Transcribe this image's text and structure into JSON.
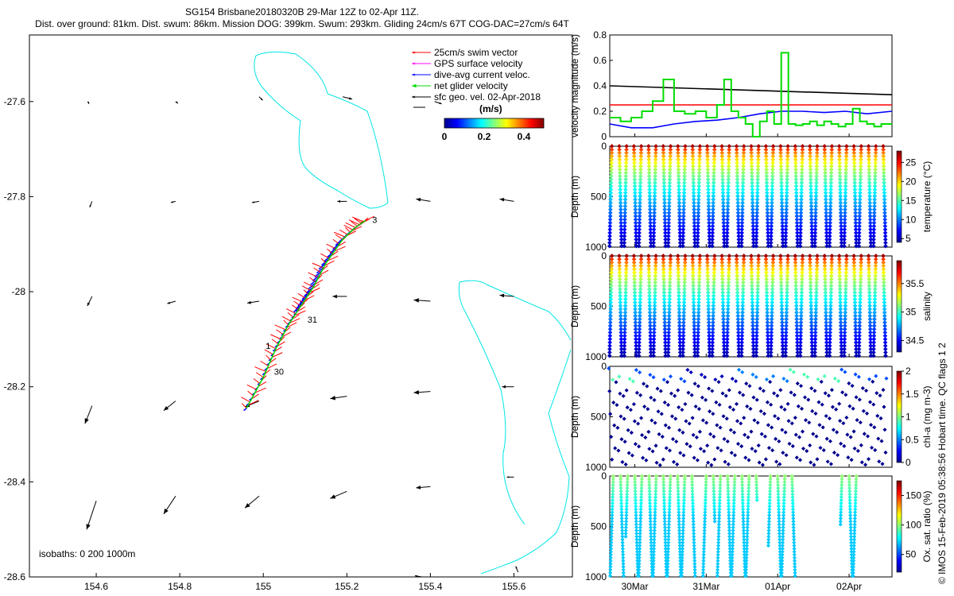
{
  "title_line1": "SG154 Brisbane20180320B 29-Mar 12Z to 02-Apr 11Z.",
  "title_line2": "Dist. over ground: 81km. Dist. swum: 86km. Mission DOG: 399km. Swum: 293km. Gliding 24cm/s 67T COG-DAC=27cm/s 64T",
  "side_stamp": "© IMOS 15-Feb-2019 05:38:56 Hobart time. QC flags 1  2",
  "colors": {
    "swim": "#ff0000",
    "gps": "#ff00ff",
    "dac": "#0000ff",
    "net": "#00dd00",
    "sfc": "#000000",
    "isobath": "#00e5e5"
  },
  "chart_data": [
    {
      "id": "map",
      "type": "scatter",
      "title": "Glider track and current vectors",
      "xlim": [
        154.44,
        155.74
      ],
      "ylim": [
        -28.6,
        -27.46
      ],
      "xticks": [
        154.6,
        154.8,
        155,
        155.2,
        155.4,
        155.6
      ],
      "xtick_labels": [
        "154.6",
        "154.8",
        "155",
        "155.2",
        "155.4",
        "155.6"
      ],
      "yticks": [
        -27.6,
        -27.8,
        -28,
        -28.2,
        -28.4,
        -28.6
      ],
      "ytick_labels": [
        "-27.6",
        "-27.8",
        "-28",
        "-28.2",
        "-28.4",
        "-28.6"
      ],
      "legend": [
        {
          "label": "25cm/s swim vector",
          "color": "#ff0000"
        },
        {
          "label": "GPS surface velocity",
          "color": "#ff00ff"
        },
        {
          "label": "dive-avg current veloc.",
          "color": "#0000ff"
        },
        {
          "label": "net glider velocity",
          "color": "#00dd00"
        },
        {
          "label": "sfc geo. vel. 02-Apr-2018",
          "color": "#000000"
        }
      ],
      "colorbar": {
        "label": "(m/s)",
        "ticks": [
          0,
          0.2,
          0.4
        ],
        "tick_labels": [
          "0",
          "0.2",
          "0.4"
        ],
        "range": [
          0,
          0.5
        ]
      },
      "isobath_label": "isobaths: 0   200  1000m",
      "track": [
        [
          154.96,
          -28.245
        ],
        [
          155.0,
          -28.18
        ],
        [
          155.03,
          -28.12
        ],
        [
          155.06,
          -28.07
        ],
        [
          155.09,
          -28.03
        ],
        [
          155.12,
          -27.99
        ],
        [
          155.15,
          -27.94
        ],
        [
          155.19,
          -27.89
        ],
        [
          155.22,
          -27.865
        ],
        [
          155.245,
          -27.85
        ]
      ],
      "day_labels": [
        {
          "text": "30",
          "lon": 155.02,
          "lat": -28.175
        },
        {
          "text": "31",
          "lon": 155.1,
          "lat": -28.065
        },
        {
          "text": "1",
          "lon": 155.0,
          "lat": -28.12
        },
        {
          "text": "3",
          "lon": 155.255,
          "lat": -27.855
        }
      ],
      "arrow_grid": [
        {
          "lon": 154.58,
          "lat": -27.6,
          "u": 0.005,
          "v": -0.01
        },
        {
          "lon": 154.79,
          "lat": -27.6,
          "u": 0.01,
          "v": -0.008
        },
        {
          "lon": 154.99,
          "lat": -27.59,
          "u": 0.015,
          "v": -0.015
        },
        {
          "lon": 155.19,
          "lat": -27.59,
          "u": 0.04,
          "v": -0.01
        },
        {
          "lon": 155.41,
          "lat": -27.6,
          "u": 0.03,
          "v": -0.01
        },
        {
          "lon": 154.59,
          "lat": -27.81,
          "u": -0.01,
          "v": -0.025
        },
        {
          "lon": 154.79,
          "lat": -27.81,
          "u": -0.02,
          "v": -0.005
        },
        {
          "lon": 154.99,
          "lat": -27.81,
          "u": -0.03,
          "v": -0.005
        },
        {
          "lon": 155.2,
          "lat": -27.81,
          "u": -0.04,
          "v": 0.0
        },
        {
          "lon": 155.4,
          "lat": -27.81,
          "u": -0.06,
          "v": 0.01
        },
        {
          "lon": 155.6,
          "lat": -27.81,
          "u": -0.06,
          "v": 0.01
        },
        {
          "lon": 154.59,
          "lat": -28.01,
          "u": -0.02,
          "v": -0.04
        },
        {
          "lon": 154.79,
          "lat": -28.02,
          "u": -0.035,
          "v": -0.01
        },
        {
          "lon": 154.99,
          "lat": -28.02,
          "u": -0.05,
          "v": -0.008
        },
        {
          "lon": 155.2,
          "lat": -28.01,
          "u": -0.06,
          "v": 0.0
        },
        {
          "lon": 155.4,
          "lat": -28.02,
          "u": -0.07,
          "v": 0.005
        },
        {
          "lon": 155.6,
          "lat": -28.01,
          "u": -0.06,
          "v": 0.005
        },
        {
          "lon": 154.59,
          "lat": -28.24,
          "u": -0.03,
          "v": -0.075
        },
        {
          "lon": 154.79,
          "lat": -28.23,
          "u": -0.05,
          "v": -0.04
        },
        {
          "lon": 154.99,
          "lat": -28.23,
          "u": -0.06,
          "v": -0.025
        },
        {
          "lon": 155.2,
          "lat": -28.22,
          "u": -0.07,
          "v": -0.01
        },
        {
          "lon": 155.4,
          "lat": -28.21,
          "u": -0.07,
          "v": -0.005
        },
        {
          "lon": 155.6,
          "lat": -28.2,
          "u": -0.05,
          "v": 0.0
        },
        {
          "lon": 154.6,
          "lat": -28.44,
          "u": -0.04,
          "v": -0.12
        },
        {
          "lon": 154.79,
          "lat": -28.43,
          "u": -0.05,
          "v": -0.075
        },
        {
          "lon": 154.99,
          "lat": -28.43,
          "u": -0.06,
          "v": -0.05
        },
        {
          "lon": 155.2,
          "lat": -28.42,
          "u": -0.07,
          "v": -0.03
        },
        {
          "lon": 155.4,
          "lat": -28.41,
          "u": -0.06,
          "v": -0.005
        },
        {
          "lon": 155.6,
          "lat": -28.39,
          "u": -0.03,
          "v": 0.0
        },
        {
          "lon": 155.38,
          "lat": -28.6,
          "u": -0.03,
          "v": 0.005
        },
        {
          "lon": 155.61,
          "lat": -28.59,
          "u": -0.01,
          "v": 0.025
        }
      ]
    },
    {
      "id": "velocity",
      "type": "line",
      "ylabel": "velocity magnitude (m/s)",
      "ylim": [
        0,
        0.8
      ],
      "yticks": [
        0,
        0.2,
        0.4,
        0.6,
        0.8
      ],
      "ytick_labels": [
        "0",
        "0.2",
        "0.4",
        "0.6",
        "0.8"
      ],
      "x_days": [
        0,
        3.95
      ],
      "series": [
        {
          "name": "sfc geo. vel.",
          "color": "#000000",
          "x": [
            0,
            3.95
          ],
          "values": [
            0.4,
            0.33
          ]
        },
        {
          "name": "25cm/s swim",
          "color": "#ff0000",
          "x": [
            0,
            3.95
          ],
          "values": [
            0.25,
            0.25
          ]
        },
        {
          "name": "dive-avg current",
          "color": "#0000ff",
          "x": [
            0,
            0.3,
            0.6,
            0.9,
            1.2,
            1.5,
            1.8,
            2.1,
            2.4,
            2.7,
            3.0,
            3.3,
            3.6,
            3.95
          ],
          "values": [
            0.1,
            0.07,
            0.07,
            0.1,
            0.12,
            0.13,
            0.15,
            0.18,
            0.2,
            0.2,
            0.19,
            0.2,
            0.18,
            0.2
          ]
        },
        {
          "name": "net glider velocity",
          "color": "#00dd00",
          "x": [
            0,
            0.15,
            0.3,
            0.45,
            0.6,
            0.75,
            0.9,
            1.05,
            1.2,
            1.35,
            1.5,
            1.6,
            1.7,
            1.8,
            1.9,
            2.0,
            2.1,
            2.2,
            2.3,
            2.4,
            2.5,
            2.6,
            2.7,
            2.8,
            2.9,
            3.0,
            3.1,
            3.2,
            3.3,
            3.4,
            3.5,
            3.6,
            3.7,
            3.8,
            3.95
          ],
          "values": [
            0.15,
            0.12,
            0.15,
            0.2,
            0.28,
            0.45,
            0.2,
            0.18,
            0.2,
            0.15,
            0.25,
            0.45,
            0.2,
            0.15,
            0.1,
            0.0,
            0.12,
            0.2,
            0.1,
            0.66,
            0.1,
            0.09,
            0.1,
            0.12,
            0.09,
            0.12,
            0.1,
            0.08,
            0.1,
            0.22,
            0.12,
            0.1,
            0.08,
            0.1,
            0.1
          ]
        }
      ]
    },
    {
      "id": "temperature",
      "type": "scatter",
      "ylabel": "Depth (m)",
      "cbar_label": "temperature (°C)",
      "ylim": [
        1000,
        0
      ],
      "yticks": [
        0,
        500,
        1000
      ],
      "ytick_labels": [
        "0",
        "500",
        "1000"
      ],
      "crange": [
        4,
        28
      ],
      "cticks": [
        5,
        10,
        15,
        20,
        25
      ],
      "ctick_labels": [
        "5",
        "10",
        "15",
        "20",
        "25"
      ],
      "profile_surface": 27,
      "profile_bottom": 5,
      "dive_count": 38,
      "dive_depth": 1000
    },
    {
      "id": "salinity",
      "type": "scatter",
      "ylabel": "Depth (m)",
      "cbar_label": "salinity",
      "ylim": [
        1000,
        0
      ],
      "yticks": [
        0,
        500,
        1000
      ],
      "ytick_labels": [
        "0",
        "500",
        "1000"
      ],
      "crange": [
        34.3,
        35.9
      ],
      "cticks": [
        34.5,
        35,
        35.5
      ],
      "ctick_labels": [
        "34.5",
        "35",
        "35.5"
      ],
      "profile_surface": 35.85,
      "profile_bottom": 34.35,
      "dive_count": 38,
      "dive_depth": 1000
    },
    {
      "id": "chla",
      "type": "scatter",
      "ylabel": "Depth (m)",
      "cbar_label": "chl-a (mg m-3)",
      "ylim": [
        1000,
        0
      ],
      "yticks": [
        0,
        500,
        1000
      ],
      "ytick_labels": [
        "0",
        "500",
        "1000"
      ],
      "crange": [
        0,
        2
      ],
      "cticks": [
        0,
        0.5,
        1,
        1.5,
        2
      ],
      "ctick_labels": [
        "0",
        "0.5",
        "1",
        "1.5",
        "2"
      ],
      "background_value": 0.0,
      "surface_values": [
        0.4,
        0.9,
        0.5,
        0.1
      ],
      "dive_count": 38
    },
    {
      "id": "oxygen",
      "type": "scatter",
      "ylabel": "Depth (m)",
      "cbar_label": "Ox. sat. ratio (%)",
      "ylim": [
        1000,
        0
      ],
      "yticks": [
        0,
        500,
        1000
      ],
      "ytick_labels": [
        "0",
        "500",
        "1000"
      ],
      "crange": [
        20,
        175
      ],
      "cticks": [
        50,
        100,
        150
      ],
      "ctick_labels": [
        "50",
        "100",
        "150"
      ],
      "profile_surface": 100,
      "profile_bottom": 70,
      "dives": [
        {
          "day": 0.05,
          "depth": 1000
        },
        {
          "day": 0.15,
          "depth": 1000
        },
        {
          "day": 0.25,
          "depth": 600
        },
        {
          "day": 0.35,
          "depth": 1000
        },
        {
          "day": 0.45,
          "depth": 1000
        },
        {
          "day": 0.55,
          "depth": 1000
        },
        {
          "day": 0.65,
          "depth": 1000
        },
        {
          "day": 0.75,
          "depth": 1000
        },
        {
          "day": 0.85,
          "depth": 1000
        },
        {
          "day": 0.95,
          "depth": 1000
        },
        {
          "day": 1.05,
          "depth": 1000
        },
        {
          "day": 1.15,
          "depth": 1000
        },
        {
          "day": 1.35,
          "depth": 1000
        },
        {
          "day": 1.45,
          "depth": 450
        },
        {
          "day": 1.55,
          "depth": 1000
        },
        {
          "day": 1.65,
          "depth": 1000
        },
        {
          "day": 1.75,
          "depth": 1000
        },
        {
          "day": 1.85,
          "depth": 1000
        },
        {
          "day": 1.95,
          "depth": 1000
        },
        {
          "day": 2.05,
          "depth": 250
        },
        {
          "day": 2.25,
          "depth": 700
        },
        {
          "day": 2.35,
          "depth": 1000
        },
        {
          "day": 2.45,
          "depth": 1000
        },
        {
          "day": 2.55,
          "depth": 1000
        },
        {
          "day": 3.25,
          "depth": 500
        },
        {
          "day": 3.35,
          "depth": 1000
        },
        {
          "day": 3.45,
          "depth": 1000
        }
      ]
    }
  ],
  "time_axis": {
    "start_label_day": 0.35,
    "ticks": [
      0.35,
      1.35,
      2.35,
      3.35
    ],
    "labels": [
      "30Mar",
      "31Mar",
      "01Apr",
      "02Apr"
    ],
    "range_days": [
      0,
      3.95
    ]
  }
}
